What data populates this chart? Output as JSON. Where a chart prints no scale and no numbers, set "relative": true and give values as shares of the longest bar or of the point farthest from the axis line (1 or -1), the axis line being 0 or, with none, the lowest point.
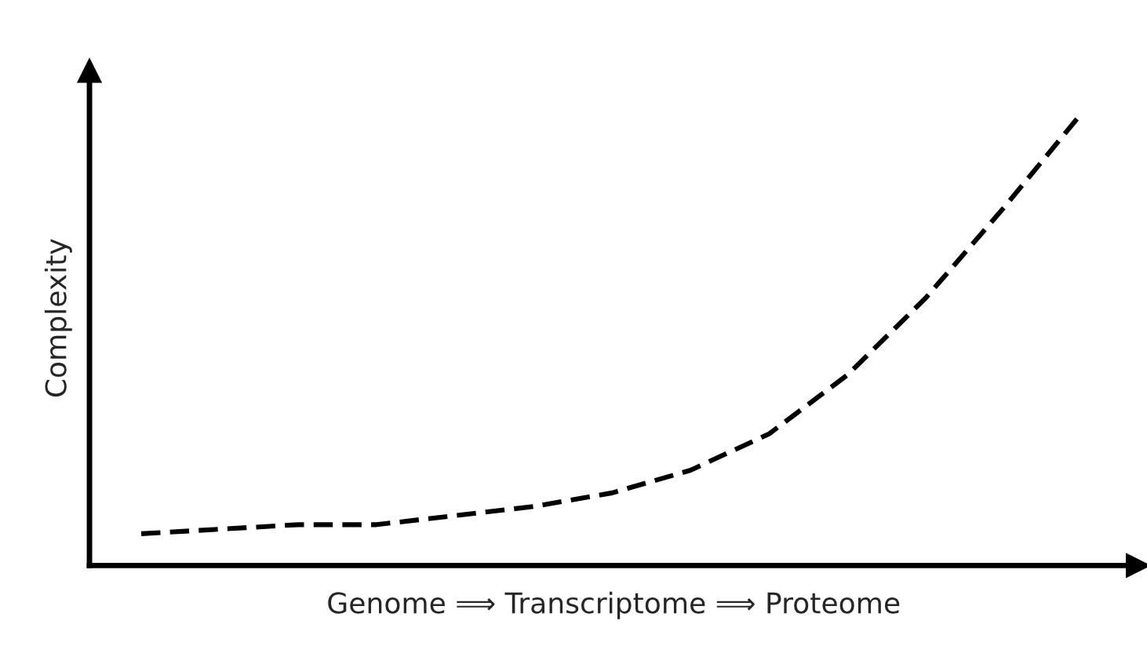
{
  "chart_data": {
    "type": "line",
    "relative": true,
    "xlabel": "Genome ⟹ Transcriptome ⟹ Proteome",
    "ylabel": "Complexity",
    "categories": [
      null,
      null,
      null,
      null,
      null,
      null,
      null,
      null,
      null,
      null,
      null,
      null,
      null
    ],
    "series": [
      {
        "color": "#000000",
        "values": [
          0.07,
          0.08,
          0.09,
          0.09,
          0.11,
          0.13,
          0.16,
          0.21,
          0.29,
          0.42,
          0.59,
          0.79,
          1.0
        ]
      }
    ],
    "line_style": "dashed",
    "marker": "none",
    "legend": false
  }
}
